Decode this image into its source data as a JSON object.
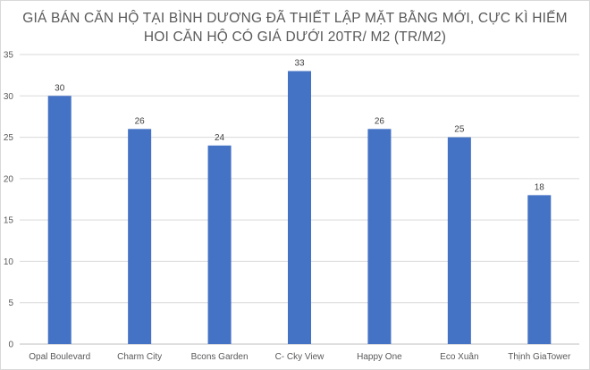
{
  "chart_data": {
    "type": "bar",
    "title_lines": [
      "GIÁ BÁN CĂN HỘ TẠI BÌNH DƯƠNG ĐÃ THIẾT LẬP MẶT BẰNG MỚI, CỰC KÌ HIẾM",
      "HOI CĂN HỘ CÓ GIÁ DƯỚI 20TR/ M2 (TR/M2)"
    ],
    "categories": [
      "Opal Boulevard",
      "Charm City",
      "Bcons Garden",
      "C- Cky View",
      "Happy One",
      "Eco Xuân",
      "Thịnh GiaTower"
    ],
    "values": [
      30,
      26,
      24,
      33,
      26,
      25,
      18
    ],
    "ylim": [
      0,
      35
    ],
    "yticks": [
      0,
      5,
      10,
      15,
      20,
      25,
      30,
      35
    ],
    "grid": true,
    "legend": "none",
    "bar_color": "#4472c4",
    "grid_color": "#d9d9d9"
  }
}
